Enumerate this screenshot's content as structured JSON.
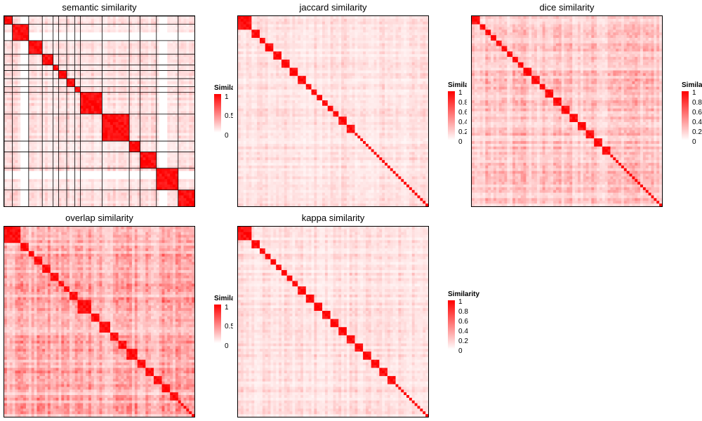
{
  "colors": {
    "low": "#ffffff",
    "high": "#ff0000",
    "border": "#000000"
  },
  "chart_data": [
    {
      "type": "heatmap",
      "title": "semantic similarity",
      "legend": {
        "title": "Similarity",
        "ticks": [
          "1",
          "0.5",
          "0"
        ]
      },
      "n": 70,
      "blocks": [
        [
          0,
          3
        ],
        [
          3,
          9
        ],
        [
          9,
          14
        ],
        [
          14,
          18
        ],
        [
          18,
          20
        ],
        [
          20,
          23
        ],
        [
          23,
          26
        ],
        [
          26,
          28
        ],
        [
          28,
          36
        ],
        [
          36,
          46
        ],
        [
          46,
          50
        ],
        [
          50,
          56
        ],
        [
          56,
          64
        ],
        [
          64,
          70
        ]
      ],
      "value_range": [
        0,
        1
      ],
      "off_block_level": 0.12,
      "blank_bands": [
        2,
        19,
        27
      ]
    },
    {
      "type": "heatmap",
      "title": "jaccard similarity",
      "legend": {
        "title": "Similarity",
        "ticks": [
          "1",
          "0.8",
          "0.6",
          "0.4",
          "0.2",
          "0"
        ]
      },
      "n": 70,
      "blocks": [
        [
          0,
          5
        ],
        [
          5,
          8
        ],
        [
          8,
          10
        ],
        [
          10,
          13
        ],
        [
          13,
          16
        ],
        [
          16,
          19
        ],
        [
          19,
          22
        ],
        [
          22,
          25
        ],
        [
          25,
          27
        ],
        [
          27,
          29
        ],
        [
          29,
          31
        ],
        [
          31,
          33
        ],
        [
          33,
          35
        ],
        [
          35,
          37
        ],
        [
          37,
          40
        ],
        [
          40,
          43
        ]
      ],
      "value_range": [
        0,
        1
      ],
      "off_block_level": 0.12
    },
    {
      "type": "heatmap",
      "title": "dice similarity",
      "legend": {
        "title": "Similarity",
        "ticks": [
          "1",
          "0.8",
          "0.6",
          "0.4",
          "0.2",
          "0"
        ]
      },
      "n": 70,
      "blocks": [
        [
          0,
          3
        ],
        [
          3,
          5
        ],
        [
          5,
          7
        ],
        [
          7,
          9
        ],
        [
          9,
          11
        ],
        [
          11,
          13
        ],
        [
          13,
          15
        ],
        [
          15,
          17
        ],
        [
          17,
          19
        ],
        [
          19,
          22
        ],
        [
          22,
          25
        ],
        [
          25,
          27
        ],
        [
          27,
          30
        ],
        [
          30,
          33
        ],
        [
          33,
          36
        ],
        [
          36,
          39
        ],
        [
          39,
          42
        ],
        [
          42,
          45
        ],
        [
          45,
          48
        ],
        [
          48,
          51
        ]
      ],
      "value_range": [
        0,
        1
      ],
      "off_block_level": 0.22
    },
    {
      "type": "heatmap",
      "title": "overlap similarity",
      "legend": {
        "title": "Similarity",
        "ticks": [
          "1",
          "0.5",
          "0"
        ]
      },
      "n": 70,
      "blocks": [
        [
          0,
          6
        ],
        [
          6,
          9
        ],
        [
          9,
          11
        ],
        [
          11,
          14
        ],
        [
          14,
          17
        ],
        [
          17,
          20
        ],
        [
          20,
          22
        ],
        [
          22,
          24
        ],
        [
          24,
          27
        ],
        [
          27,
          32
        ],
        [
          32,
          35
        ],
        [
          35,
          39
        ],
        [
          39,
          42
        ],
        [
          42,
          45
        ],
        [
          45,
          49
        ],
        [
          49,
          52
        ],
        [
          52,
          55
        ],
        [
          55,
          58
        ],
        [
          58,
          61
        ],
        [
          61,
          64
        ]
      ],
      "value_range": [
        0,
        1
      ],
      "off_block_level": 0.3
    },
    {
      "type": "heatmap",
      "title": "kappa similarity",
      "legend": {
        "title": "Similarity",
        "ticks": [
          "1",
          "0.8",
          "0.6",
          "0.4",
          "0.2",
          "0"
        ]
      },
      "n": 70,
      "blocks": [
        [
          0,
          5
        ],
        [
          5,
          8
        ],
        [
          8,
          10
        ],
        [
          10,
          12
        ],
        [
          12,
          14
        ],
        [
          14,
          16
        ],
        [
          16,
          18
        ],
        [
          18,
          20
        ],
        [
          20,
          22
        ],
        [
          22,
          25
        ],
        [
          25,
          28
        ],
        [
          28,
          31
        ],
        [
          31,
          34
        ],
        [
          34,
          37
        ],
        [
          37,
          40
        ],
        [
          40,
          43
        ],
        [
          43,
          46
        ],
        [
          46,
          49
        ],
        [
          49,
          52
        ],
        [
          52,
          55
        ],
        [
          55,
          58
        ]
      ],
      "value_range": [
        0,
        1
      ],
      "off_block_level": 0.12
    }
  ]
}
